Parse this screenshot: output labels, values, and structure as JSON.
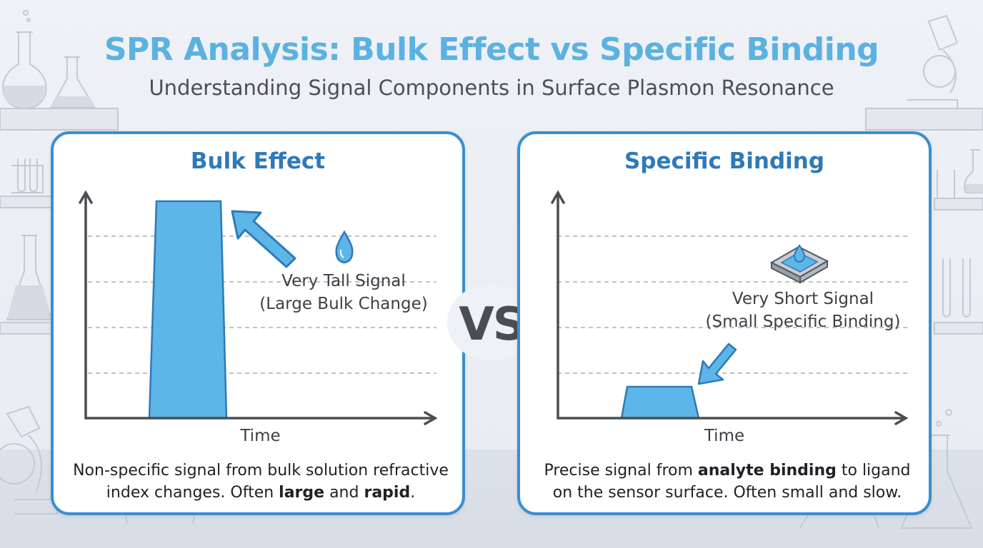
{
  "title": "SPR Analysis: Bulk Effect vs Specific Binding",
  "subtitle": "Understanding Signal Components in Surface Plasmon Resonance",
  "vs_label": "VS",
  "colors": {
    "title": "#5bb2e0",
    "panel_border": "#3a8fd0",
    "panel_title": "#2f79b8",
    "signal_fill": "#5cb6e8",
    "axis": "#4a4d52"
  },
  "panels": {
    "bulk": {
      "title": "Bulk Effect",
      "annotation_line1": "Very Tall Signal",
      "annotation_line2": "(Large Bulk Change)",
      "xlabel": "Time",
      "icon": "water-drop-icon",
      "desc_line1": "Non-specific signal from bulk solution refractive",
      "desc_line2_pre": "index changes. Often ",
      "desc_bold1": "large",
      "desc_mid": " and ",
      "desc_bold2": "rapid",
      "desc_end": "."
    },
    "specific": {
      "title": "Specific Binding",
      "annotation_line1": "Very Short Signal",
      "annotation_line2": "(Small Specific Binding)",
      "xlabel": "Time",
      "icon": "sensor-chip-drop-icon",
      "desc_pre": "Precise signal from ",
      "desc_bold": "analyte binding",
      "desc_post": " to ligand",
      "desc_line2": "on the sensor surface. Often small and slow."
    }
  },
  "chart_data": [
    {
      "type": "area",
      "title": "Bulk Effect",
      "xlabel": "Time",
      "ylabel": "",
      "shape": "tall trapezoid pulse",
      "relative_height": 0.95,
      "grid": "dashed horizontal"
    },
    {
      "type": "area",
      "title": "Specific Binding",
      "xlabel": "Time",
      "ylabel": "",
      "shape": "short trapezoid pulse",
      "relative_height": 0.14,
      "grid": "dashed horizontal"
    }
  ]
}
